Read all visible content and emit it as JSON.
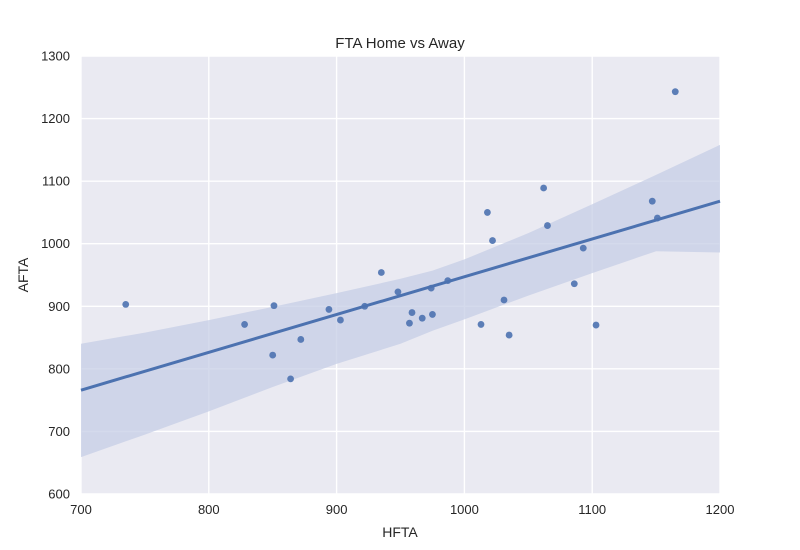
{
  "chart_data": {
    "type": "scatter",
    "title": "FTA Home vs Away",
    "xlabel": "HFTA",
    "ylabel": "AFTA",
    "xlim": [
      700,
      1200
    ],
    "ylim": [
      600,
      1300
    ],
    "xticks": [
      "700",
      "800",
      "900",
      "1000",
      "1100",
      "1200"
    ],
    "yticks": [
      "600",
      "700",
      "800",
      "900",
      "1000",
      "1100",
      "1200",
      "1300"
    ],
    "grid": true,
    "colors": {
      "background": "#eaeaf2",
      "grid": "#ffffff",
      "series": "#4c72b0",
      "band": "#c5cde6"
    },
    "points": [
      {
        "x": 735,
        "y": 903
      },
      {
        "x": 828,
        "y": 871
      },
      {
        "x": 850,
        "y": 822
      },
      {
        "x": 851,
        "y": 901
      },
      {
        "x": 864,
        "y": 784
      },
      {
        "x": 872,
        "y": 847
      },
      {
        "x": 894,
        "y": 895
      },
      {
        "x": 903,
        "y": 878
      },
      {
        "x": 922,
        "y": 900
      },
      {
        "x": 935,
        "y": 954
      },
      {
        "x": 948,
        "y": 923
      },
      {
        "x": 957,
        "y": 873
      },
      {
        "x": 959,
        "y": 890
      },
      {
        "x": 967,
        "y": 881
      },
      {
        "x": 974,
        "y": 929
      },
      {
        "x": 975,
        "y": 887
      },
      {
        "x": 987,
        "y": 941
      },
      {
        "x": 1013,
        "y": 871
      },
      {
        "x": 1018,
        "y": 1050
      },
      {
        "x": 1022,
        "y": 1005
      },
      {
        "x": 1031,
        "y": 910
      },
      {
        "x": 1035,
        "y": 854
      },
      {
        "x": 1062,
        "y": 1089
      },
      {
        "x": 1065,
        "y": 1029
      },
      {
        "x": 1086,
        "y": 936
      },
      {
        "x": 1093,
        "y": 993
      },
      {
        "x": 1103,
        "y": 870
      },
      {
        "x": 1147,
        "y": 1068
      },
      {
        "x": 1151,
        "y": 1041
      },
      {
        "x": 1165,
        "y": 1243
      }
    ],
    "regression": {
      "x": [
        700,
        1200
      ],
      "y": [
        766,
        1068
      ]
    },
    "confidence_band": {
      "x": [
        700,
        750,
        800,
        850,
        900,
        950,
        975,
        1000,
        1050,
        1100,
        1150,
        1200
      ],
      "upper": [
        840,
        858,
        878,
        899,
        921,
        944,
        957,
        975,
        1017,
        1063,
        1110,
        1158
      ],
      "lower": [
        659,
        695,
        732,
        771,
        808,
        840,
        861,
        879,
        917,
        953,
        988,
        986
      ]
    }
  }
}
